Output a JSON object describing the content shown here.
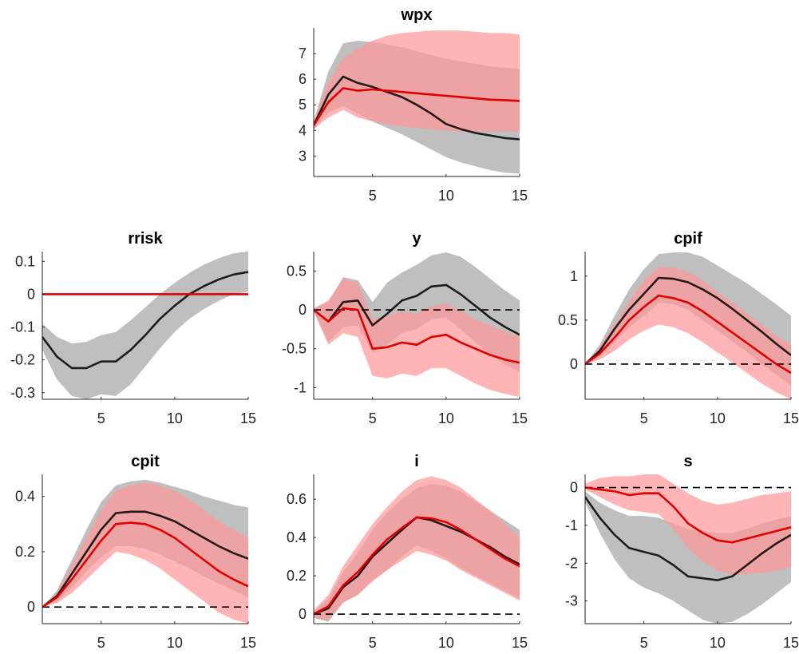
{
  "figure": {
    "colors": {
      "black_band": "#bfbfbf",
      "red_band": "#ff9999",
      "black_line": "#000000",
      "red_line": "#e00000",
      "zero_line": "#000000"
    }
  },
  "chart_data": [
    {
      "id": "wpx",
      "type": "area",
      "title": "wpx",
      "xlim": [
        1,
        15
      ],
      "ylim": [
        2.2,
        8.0
      ],
      "xticks": [
        5,
        10,
        15
      ],
      "yticks": [
        3,
        4,
        5,
        6,
        7
      ],
      "ytick_labels": [
        "3",
        "4",
        "5",
        "6",
        "7"
      ],
      "zero_line": false,
      "x": [
        1,
        2,
        3,
        4,
        5,
        6,
        7,
        8,
        9,
        10,
        11,
        12,
        13,
        14,
        15
      ],
      "series": [
        {
          "color_key": "black",
          "values": [
            4.2,
            5.4,
            6.1,
            5.85,
            5.7,
            5.5,
            5.3,
            5.0,
            4.65,
            4.25,
            4.05,
            3.9,
            3.8,
            3.7,
            3.65
          ],
          "band_upper": [
            4.35,
            6.3,
            7.4,
            7.5,
            7.45,
            7.35,
            7.25,
            7.1,
            6.95,
            6.8,
            6.7,
            6.6,
            6.5,
            6.45,
            6.4
          ],
          "band_lower": [
            4.05,
            4.7,
            4.95,
            4.65,
            4.35,
            4.1,
            3.85,
            3.55,
            3.25,
            2.95,
            2.75,
            2.6,
            2.45,
            2.35,
            2.3
          ]
        },
        {
          "color_key": "red",
          "values": [
            4.2,
            5.1,
            5.65,
            5.55,
            5.6,
            5.55,
            5.5,
            5.45,
            5.4,
            5.35,
            5.3,
            5.25,
            5.2,
            5.18,
            5.15
          ],
          "band_upper": [
            4.35,
            5.9,
            6.8,
            7.2,
            7.5,
            7.7,
            7.8,
            7.85,
            7.9,
            7.9,
            7.9,
            7.85,
            7.8,
            7.8,
            7.75
          ],
          "band_lower": [
            4.05,
            4.5,
            4.8,
            4.5,
            4.35,
            4.25,
            4.15,
            4.1,
            4.05,
            4.0,
            3.95,
            3.95,
            3.95,
            3.95,
            3.95
          ]
        }
      ]
    },
    {
      "id": "rrisk",
      "type": "area",
      "title": "rrisk",
      "xlim": [
        1,
        15
      ],
      "ylim": [
        -0.32,
        0.13
      ],
      "xticks": [
        5,
        10,
        15
      ],
      "yticks": [
        -0.3,
        -0.2,
        -0.1,
        0,
        0.1
      ],
      "ytick_labels": [
        "-0.3",
        "-0.2",
        "-0.1",
        "0",
        "0.1"
      ],
      "zero_line": false,
      "x": [
        1,
        2,
        3,
        4,
        5,
        6,
        7,
        8,
        9,
        10,
        11,
        12,
        13,
        14,
        15
      ],
      "series": [
        {
          "color_key": "black",
          "values": [
            -0.13,
            -0.19,
            -0.225,
            -0.225,
            -0.205,
            -0.205,
            -0.17,
            -0.125,
            -0.075,
            -0.035,
            0.0,
            0.025,
            0.045,
            0.06,
            0.068
          ],
          "band_upper": [
            -0.09,
            -0.13,
            -0.15,
            -0.145,
            -0.125,
            -0.115,
            -0.08,
            -0.04,
            0.0,
            0.035,
            0.065,
            0.09,
            0.11,
            0.125,
            0.13
          ],
          "band_lower": [
            -0.17,
            -0.26,
            -0.31,
            -0.32,
            -0.305,
            -0.31,
            -0.275,
            -0.22,
            -0.165,
            -0.115,
            -0.075,
            -0.045,
            -0.02,
            0.0,
            0.008
          ]
        },
        {
          "color_key": "red",
          "values": [
            0,
            0,
            0,
            0,
            0,
            0,
            0,
            0,
            0,
            0,
            0,
            0,
            0,
            0,
            0
          ],
          "band_upper": [
            0,
            0,
            0,
            0,
            0,
            0,
            0,
            0,
            0,
            0,
            0,
            0,
            0,
            0,
            0
          ],
          "band_lower": [
            0,
            0,
            0,
            0,
            0,
            0,
            0,
            0,
            0,
            0,
            0,
            0,
            0,
            0,
            0
          ]
        }
      ]
    },
    {
      "id": "y",
      "type": "area",
      "title": "y",
      "xlim": [
        1,
        15
      ],
      "ylim": [
        -1.15,
        0.75
      ],
      "xticks": [
        5,
        10,
        15
      ],
      "yticks": [
        -1,
        -0.5,
        0,
        0.5
      ],
      "ytick_labels": [
        "-1",
        "-0.5",
        "0",
        "0.5"
      ],
      "zero_line": true,
      "x": [
        1,
        2,
        3,
        4,
        5,
        6,
        7,
        8,
        9,
        10,
        11,
        12,
        13,
        14,
        15
      ],
      "series": [
        {
          "color_key": "black",
          "values": [
            0,
            -0.15,
            0.1,
            0.12,
            -0.2,
            -0.05,
            0.12,
            0.18,
            0.3,
            0.32,
            0.2,
            0.05,
            -0.1,
            -0.22,
            -0.32
          ],
          "band_upper": [
            0.02,
            0.1,
            0.42,
            0.38,
            0.1,
            0.35,
            0.48,
            0.58,
            0.7,
            0.74,
            0.68,
            0.55,
            0.4,
            0.25,
            0.12
          ],
          "band_lower": [
            -0.02,
            -0.42,
            -0.22,
            -0.2,
            -0.55,
            -0.45,
            -0.3,
            -0.25,
            -0.12,
            -0.1,
            -0.25,
            -0.42,
            -0.58,
            -0.7,
            -0.8
          ]
        },
        {
          "color_key": "red",
          "values": [
            0,
            -0.15,
            0.02,
            0.0,
            -0.5,
            -0.48,
            -0.42,
            -0.45,
            -0.35,
            -0.32,
            -0.42,
            -0.5,
            -0.58,
            -0.64,
            -0.68
          ],
          "band_upper": [
            0.02,
            0.12,
            0.4,
            0.35,
            -0.12,
            -0.08,
            -0.02,
            -0.05,
            0.05,
            0.08,
            -0.02,
            -0.12,
            -0.2,
            -0.28,
            -0.35
          ],
          "band_lower": [
            -0.02,
            -0.45,
            -0.3,
            -0.35,
            -0.85,
            -0.88,
            -0.82,
            -0.85,
            -0.75,
            -0.75,
            -0.85,
            -0.95,
            -1.03,
            -1.08,
            -1.12
          ]
        }
      ]
    },
    {
      "id": "cpif",
      "type": "area",
      "title": "cpif",
      "xlim": [
        1,
        15
      ],
      "ylim": [
        -0.4,
        1.28
      ],
      "xticks": [
        5,
        10,
        15
      ],
      "yticks": [
        0,
        0.5,
        1
      ],
      "ytick_labels": [
        "0",
        "0.5",
        "1"
      ],
      "zero_line": true,
      "x": [
        1,
        2,
        3,
        4,
        5,
        6,
        7,
        8,
        9,
        10,
        11,
        12,
        13,
        14,
        15
      ],
      "series": [
        {
          "color_key": "black",
          "values": [
            0,
            0.15,
            0.4,
            0.62,
            0.8,
            0.98,
            0.97,
            0.93,
            0.85,
            0.75,
            0.63,
            0.5,
            0.37,
            0.23,
            0.1
          ],
          "band_upper": [
            0.0,
            0.22,
            0.55,
            0.85,
            1.08,
            1.25,
            1.27,
            1.27,
            1.22,
            1.12,
            1.02,
            0.92,
            0.8,
            0.68,
            0.55
          ],
          "band_lower": [
            0.0,
            0.08,
            0.25,
            0.42,
            0.55,
            0.7,
            0.68,
            0.62,
            0.5,
            0.38,
            0.26,
            0.14,
            0.0,
            -0.12,
            -0.25
          ]
        },
        {
          "color_key": "red",
          "values": [
            0,
            0.12,
            0.3,
            0.5,
            0.65,
            0.78,
            0.75,
            0.7,
            0.6,
            0.48,
            0.36,
            0.24,
            0.12,
            0.0,
            -0.1
          ],
          "band_upper": [
            0.0,
            0.2,
            0.45,
            0.72,
            0.95,
            1.1,
            1.1,
            1.05,
            0.95,
            0.82,
            0.7,
            0.58,
            0.45,
            0.32,
            0.22
          ],
          "band_lower": [
            0.0,
            0.05,
            0.15,
            0.28,
            0.38,
            0.45,
            0.42,
            0.35,
            0.25,
            0.13,
            0.02,
            -0.1,
            -0.22,
            -0.32,
            -0.4
          ]
        }
      ]
    },
    {
      "id": "cpit",
      "type": "area",
      "title": "cpit",
      "xlim": [
        1,
        15
      ],
      "ylim": [
        -0.06,
        0.48
      ],
      "xticks": [
        5,
        10,
        15
      ],
      "yticks": [
        0,
        0.2,
        0.4
      ],
      "ytick_labels": [
        "0",
        "0.2",
        "0.4"
      ],
      "zero_line": true,
      "x": [
        1,
        2,
        3,
        4,
        5,
        6,
        7,
        8,
        9,
        10,
        11,
        12,
        13,
        14,
        15
      ],
      "series": [
        {
          "color_key": "black",
          "values": [
            0,
            0.04,
            0.12,
            0.2,
            0.28,
            0.34,
            0.345,
            0.345,
            0.33,
            0.31,
            0.28,
            0.25,
            0.22,
            0.195,
            0.175
          ],
          "band_upper": [
            0,
            0.06,
            0.17,
            0.28,
            0.38,
            0.44,
            0.455,
            0.46,
            0.45,
            0.435,
            0.42,
            0.4,
            0.385,
            0.37,
            0.36
          ],
          "band_lower": [
            0,
            0.02,
            0.07,
            0.13,
            0.18,
            0.22,
            0.22,
            0.21,
            0.19,
            0.165,
            0.14,
            0.11,
            0.085,
            0.06,
            0.035
          ]
        },
        {
          "color_key": "red",
          "values": [
            0,
            0.035,
            0.1,
            0.17,
            0.24,
            0.3,
            0.305,
            0.3,
            0.28,
            0.25,
            0.21,
            0.17,
            0.13,
            0.1,
            0.075
          ],
          "band_upper": [
            0,
            0.055,
            0.15,
            0.25,
            0.35,
            0.42,
            0.44,
            0.45,
            0.44,
            0.42,
            0.39,
            0.35,
            0.31,
            0.28,
            0.25
          ],
          "band_lower": [
            0,
            0.015,
            0.05,
            0.1,
            0.15,
            0.2,
            0.19,
            0.17,
            0.14,
            0.1,
            0.06,
            0.02,
            -0.02,
            -0.045,
            -0.06
          ]
        }
      ]
    },
    {
      "id": "i",
      "type": "area",
      "title": "i",
      "xlim": [
        1,
        15
      ],
      "ylim": [
        -0.05,
        0.73
      ],
      "xticks": [
        5,
        10,
        15
      ],
      "yticks": [
        0,
        0.2,
        0.4,
        0.6
      ],
      "ytick_labels": [
        "0",
        "0.2",
        "0.4",
        "0.6"
      ],
      "zero_line": true,
      "x": [
        1,
        2,
        3,
        4,
        5,
        6,
        7,
        8,
        9,
        10,
        11,
        12,
        13,
        14,
        15
      ],
      "series": [
        {
          "color_key": "black",
          "values": [
            0.0,
            0.03,
            0.14,
            0.2,
            0.3,
            0.37,
            0.44,
            0.505,
            0.49,
            0.46,
            0.43,
            0.39,
            0.35,
            0.3,
            0.26
          ],
          "band_upper": [
            0.01,
            0.08,
            0.22,
            0.32,
            0.44,
            0.53,
            0.6,
            0.66,
            0.68,
            0.67,
            0.64,
            0.59,
            0.54,
            0.49,
            0.44
          ],
          "band_lower": [
            -0.02,
            -0.04,
            0.06,
            0.1,
            0.18,
            0.23,
            0.3,
            0.36,
            0.33,
            0.29,
            0.24,
            0.2,
            0.16,
            0.12,
            0.08
          ]
        },
        {
          "color_key": "red",
          "values": [
            0.0,
            0.04,
            0.15,
            0.22,
            0.31,
            0.39,
            0.45,
            0.505,
            0.5,
            0.48,
            0.44,
            0.39,
            0.34,
            0.29,
            0.25
          ],
          "band_upper": [
            0.02,
            0.1,
            0.25,
            0.36,
            0.47,
            0.56,
            0.64,
            0.7,
            0.72,
            0.7,
            0.66,
            0.6,
            0.54,
            0.47,
            0.4
          ],
          "band_lower": [
            -0.02,
            -0.03,
            0.06,
            0.1,
            0.17,
            0.23,
            0.28,
            0.33,
            0.31,
            0.28,
            0.23,
            0.19,
            0.15,
            0.11,
            0.07
          ]
        }
      ]
    },
    {
      "id": "s",
      "type": "area",
      "title": "s",
      "xlim": [
        1,
        15
      ],
      "ylim": [
        -3.6,
        0.35
      ],
      "xticks": [
        5,
        10,
        15
      ],
      "yticks": [
        -3,
        -2,
        -1,
        0
      ],
      "ytick_labels": [
        "-3",
        "-2",
        "-1",
        "0"
      ],
      "zero_line": true,
      "x": [
        1,
        2,
        3,
        4,
        5,
        6,
        7,
        8,
        9,
        10,
        11,
        12,
        13,
        14,
        15
      ],
      "series": [
        {
          "color_key": "black",
          "values": [
            -0.25,
            -0.8,
            -1.25,
            -1.6,
            -1.7,
            -1.8,
            -2.05,
            -2.35,
            -2.4,
            -2.45,
            -2.35,
            -2.05,
            -1.75,
            -1.48,
            -1.25
          ],
          "band_upper": [
            -0.1,
            -0.4,
            -0.6,
            -0.75,
            -0.75,
            -0.8,
            -0.95,
            -1.1,
            -1.15,
            -1.2,
            -1.2,
            -1.1,
            -0.95,
            -0.85,
            -0.75
          ],
          "band_lower": [
            -0.4,
            -1.2,
            -1.9,
            -2.4,
            -2.65,
            -2.8,
            -3.0,
            -3.25,
            -3.5,
            -3.6,
            -3.55,
            -3.35,
            -3.1,
            -2.8,
            -2.5
          ]
        },
        {
          "color_key": "red",
          "values": [
            0.0,
            -0.05,
            -0.1,
            -0.2,
            -0.15,
            -0.15,
            -0.5,
            -0.95,
            -1.2,
            -1.4,
            -1.45,
            -1.35,
            -1.25,
            -1.15,
            -1.05
          ],
          "band_upper": [
            0.1,
            0.25,
            0.3,
            0.3,
            0.35,
            0.35,
            0.1,
            -0.15,
            -0.35,
            -0.45,
            -0.4,
            -0.3,
            -0.2,
            -0.15,
            -0.1
          ],
          "band_lower": [
            -0.05,
            -0.25,
            -0.45,
            -0.6,
            -0.65,
            -0.7,
            -1.1,
            -1.6,
            -1.95,
            -2.2,
            -2.3,
            -2.3,
            -2.25,
            -2.2,
            -2.1
          ]
        }
      ]
    }
  ]
}
